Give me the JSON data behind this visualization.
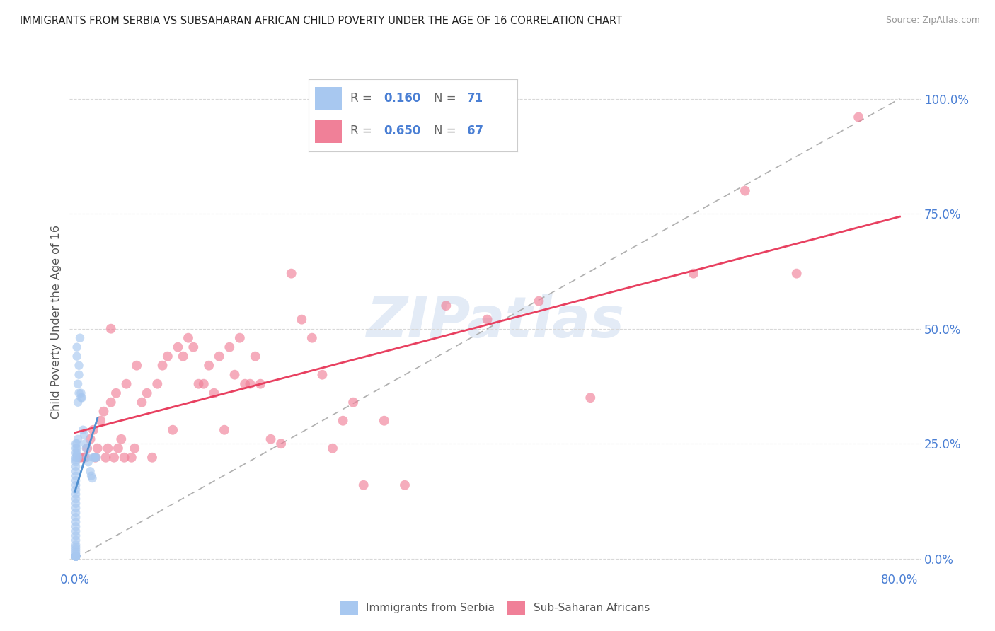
{
  "title": "IMMIGRANTS FROM SERBIA VS SUBSAHARAN AFRICAN CHILD POVERTY UNDER THE AGE OF 16 CORRELATION CHART",
  "source": "Source: ZipAtlas.com",
  "ylabel": "Child Poverty Under the Age of 16",
  "ytick_labels": [
    "0.0%",
    "25.0%",
    "50.0%",
    "75.0%",
    "100.0%"
  ],
  "ytick_values": [
    0,
    0.25,
    0.5,
    0.75,
    1.0
  ],
  "xtick_labels": [
    "0.0%",
    "80.0%"
  ],
  "xtick_positions": [
    0,
    0.8
  ],
  "xlim": [
    -0.005,
    0.82
  ],
  "ylim": [
    -0.02,
    1.05
  ],
  "legend1_label": "Immigrants from Serbia",
  "legend2_label": "Sub-Saharan Africans",
  "r1": "0.160",
  "n1": "71",
  "r2": "0.650",
  "n2": "67",
  "color_serbia": "#a8c8f0",
  "color_subsaharan": "#f08098",
  "color_line_serbia": "#5090d0",
  "color_line_subsaharan": "#e84060",
  "color_diag": "#b0b0b0",
  "title_color": "#222222",
  "source_color": "#999999",
  "tick_color": "#4a7fd4",
  "ylabel_color": "#555555",
  "watermark_color": "#c8d8ee",
  "serbia_x": [
    0.001,
    0.001,
    0.001,
    0.001,
    0.001,
    0.001,
    0.001,
    0.001,
    0.001,
    0.001,
    0.001,
    0.001,
    0.001,
    0.001,
    0.001,
    0.001,
    0.001,
    0.001,
    0.001,
    0.001,
    0.001,
    0.001,
    0.001,
    0.001,
    0.001,
    0.001,
    0.001,
    0.001,
    0.001,
    0.001,
    0.001,
    0.001,
    0.001,
    0.001,
    0.001,
    0.001,
    0.001,
    0.001,
    0.001,
    0.001,
    0.002,
    0.002,
    0.002,
    0.002,
    0.002,
    0.003,
    0.003,
    0.004,
    0.004,
    0.005,
    0.006,
    0.006,
    0.007,
    0.008,
    0.009,
    0.01,
    0.011,
    0.012,
    0.013,
    0.015,
    0.016,
    0.017,
    0.018,
    0.019,
    0.02,
    0.021,
    0.002,
    0.002,
    0.003,
    0.003,
    0.004
  ],
  "serbia_y": [
    0.005,
    0.01,
    0.015,
    0.02,
    0.025,
    0.03,
    0.04,
    0.05,
    0.06,
    0.07,
    0.08,
    0.09,
    0.1,
    0.11,
    0.12,
    0.13,
    0.14,
    0.15,
    0.16,
    0.17,
    0.18,
    0.19,
    0.2,
    0.21,
    0.215,
    0.22,
    0.23,
    0.24,
    0.25,
    0.005,
    0.005,
    0.005,
    0.005,
    0.005,
    0.005,
    0.005,
    0.005,
    0.005,
    0.005,
    0.005,
    0.22,
    0.225,
    0.23,
    0.24,
    0.25,
    0.38,
    0.26,
    0.36,
    0.42,
    0.48,
    0.35,
    0.36,
    0.35,
    0.28,
    0.27,
    0.25,
    0.24,
    0.22,
    0.21,
    0.19,
    0.18,
    0.175,
    0.22,
    0.22,
    0.22,
    0.22,
    0.44,
    0.46,
    0.22,
    0.34,
    0.4
  ],
  "subsaharan_x": [
    0.005,
    0.008,
    0.01,
    0.012,
    0.015,
    0.018,
    0.02,
    0.022,
    0.025,
    0.028,
    0.03,
    0.032,
    0.035,
    0.038,
    0.04,
    0.042,
    0.045,
    0.048,
    0.05,
    0.055,
    0.058,
    0.06,
    0.065,
    0.07,
    0.075,
    0.08,
    0.085,
    0.09,
    0.095,
    0.1,
    0.105,
    0.11,
    0.115,
    0.12,
    0.125,
    0.13,
    0.135,
    0.14,
    0.145,
    0.15,
    0.155,
    0.16,
    0.165,
    0.17,
    0.175,
    0.18,
    0.19,
    0.2,
    0.21,
    0.22,
    0.23,
    0.24,
    0.25,
    0.26,
    0.27,
    0.28,
    0.3,
    0.32,
    0.36,
    0.4,
    0.45,
    0.5,
    0.6,
    0.65,
    0.7,
    0.76,
    0.035
  ],
  "subsaharan_y": [
    0.22,
    0.22,
    0.22,
    0.24,
    0.26,
    0.28,
    0.22,
    0.24,
    0.3,
    0.32,
    0.22,
    0.24,
    0.34,
    0.22,
    0.36,
    0.24,
    0.26,
    0.22,
    0.38,
    0.22,
    0.24,
    0.42,
    0.34,
    0.36,
    0.22,
    0.38,
    0.42,
    0.44,
    0.28,
    0.46,
    0.44,
    0.48,
    0.46,
    0.38,
    0.38,
    0.42,
    0.36,
    0.44,
    0.28,
    0.46,
    0.4,
    0.48,
    0.38,
    0.38,
    0.44,
    0.38,
    0.26,
    0.25,
    0.62,
    0.52,
    0.48,
    0.4,
    0.24,
    0.3,
    0.34,
    0.16,
    0.3,
    0.16,
    0.55,
    0.52,
    0.56,
    0.35,
    0.62,
    0.8,
    0.62,
    0.96,
    0.5
  ],
  "background_color": "#ffffff",
  "grid_color": "#d8d8d8"
}
